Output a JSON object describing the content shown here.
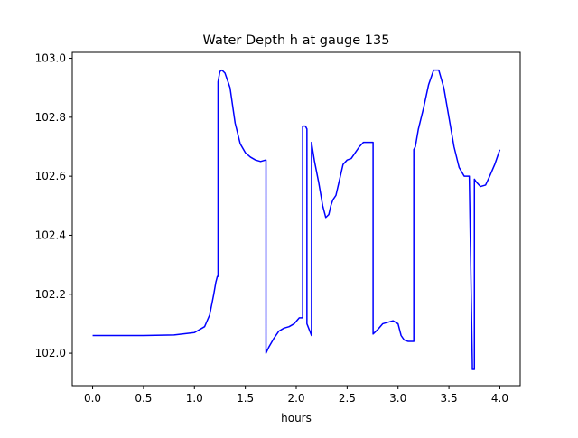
{
  "chart_data": {
    "type": "line",
    "title": "Water Depth h at gauge 135",
    "xlabel": "hours",
    "ylabel": "",
    "xlim": [
      -0.2,
      4.2
    ],
    "ylim": [
      101.89,
      103.02
    ],
    "xticks": [
      0.0,
      0.5,
      1.0,
      1.5,
      2.0,
      2.5,
      3.0,
      3.5,
      4.0
    ],
    "xtick_labels": [
      "0.0",
      "0.5",
      "1.0",
      "1.5",
      "2.0",
      "2.5",
      "3.0",
      "3.5",
      "4.0"
    ],
    "yticks": [
      102.0,
      102.2,
      102.4,
      102.6,
      102.8,
      103.0
    ],
    "ytick_labels": [
      "102.0",
      "102.2",
      "102.4",
      "102.6",
      "102.8",
      "103.0"
    ],
    "grid": false,
    "series": [
      {
        "color": "#0000ff",
        "x": [
          0.0,
          0.5,
          0.8,
          1.0,
          1.1,
          1.15,
          1.19,
          1.21,
          1.225,
          1.232,
          1.232,
          1.25,
          1.27,
          1.3,
          1.35,
          1.4,
          1.45,
          1.5,
          1.55,
          1.6,
          1.65,
          1.7,
          1.703,
          1.703,
          1.73,
          1.78,
          1.83,
          1.88,
          1.93,
          1.98,
          2.03,
          2.063,
          2.063,
          2.09,
          2.105,
          2.105,
          2.15,
          2.15,
          2.18,
          2.22,
          2.26,
          2.29,
          2.32,
          2.34,
          2.36,
          2.39,
          2.42,
          2.46,
          2.5,
          2.54,
          2.58,
          2.62,
          2.66,
          2.7,
          2.74,
          2.755,
          2.755,
          2.8,
          2.85,
          2.9,
          2.95,
          3.0,
          3.03,
          3.06,
          3.1,
          3.155,
          3.155,
          3.17,
          3.2,
          3.25,
          3.3,
          3.35,
          3.4,
          3.45,
          3.5,
          3.55,
          3.6,
          3.65,
          3.7,
          3.73,
          3.73,
          3.75,
          3.75,
          3.77,
          3.81,
          3.86,
          3.9,
          3.95,
          4.0
        ],
        "y": [
          102.06,
          102.06,
          102.062,
          102.07,
          102.09,
          102.13,
          102.2,
          102.24,
          102.26,
          102.26,
          102.92,
          102.955,
          102.96,
          102.95,
          102.9,
          102.78,
          102.71,
          102.68,
          102.665,
          102.655,
          102.65,
          102.655,
          102.655,
          102.0,
          102.02,
          102.05,
          102.075,
          102.085,
          102.09,
          102.1,
          102.12,
          102.12,
          102.77,
          102.77,
          102.76,
          102.1,
          102.06,
          102.715,
          102.65,
          102.58,
          102.5,
          102.46,
          102.47,
          102.5,
          102.52,
          102.535,
          102.58,
          102.64,
          102.655,
          102.66,
          102.68,
          102.7,
          102.715,
          102.715,
          102.715,
          102.715,
          102.065,
          102.08,
          102.1,
          102.105,
          102.11,
          102.1,
          102.06,
          102.045,
          102.04,
          102.04,
          102.69,
          102.7,
          102.76,
          102.83,
          102.91,
          102.96,
          102.96,
          102.9,
          102.8,
          102.7,
          102.63,
          102.6,
          102.6,
          101.96,
          101.945,
          101.945,
          102.59,
          102.58,
          102.565,
          102.57,
          102.6,
          102.64,
          102.69
        ]
      }
    ]
  }
}
